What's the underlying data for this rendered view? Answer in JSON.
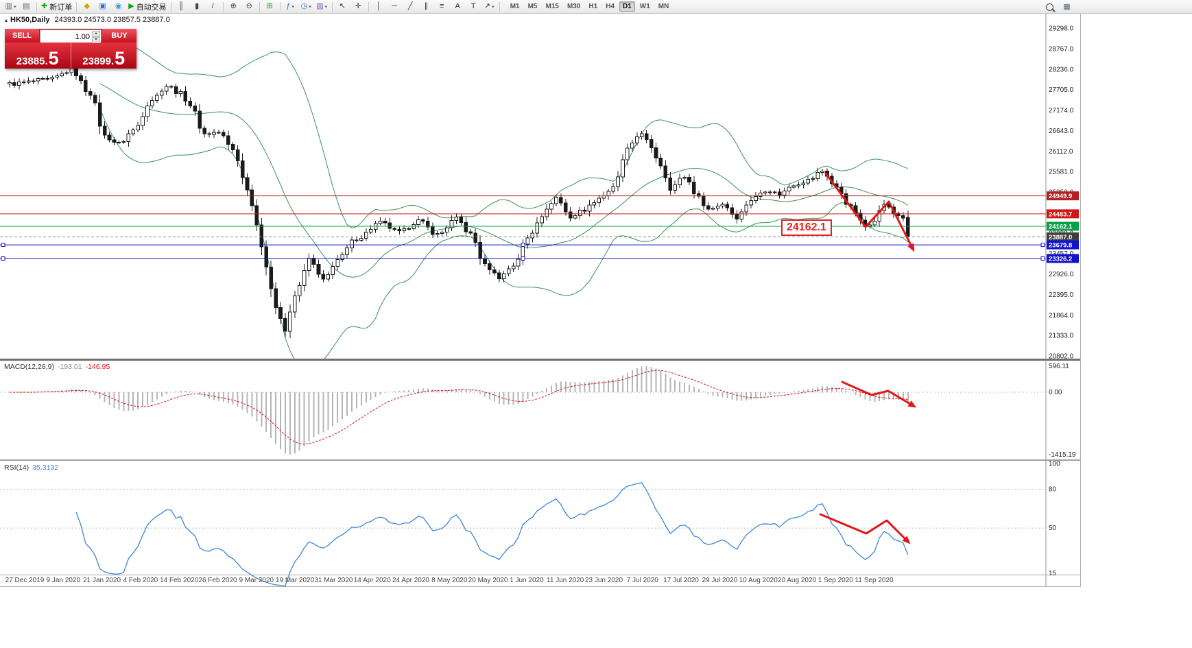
{
  "toolbar": {
    "dropdown_glyph": "▾",
    "items": [
      {
        "name": "new-chart-icon",
        "glyph": "▥",
        "color": "#5a6b7d",
        "dropdown": true
      },
      {
        "name": "profiles-icon",
        "glyph": "▤",
        "color": "#5a6b7d"
      },
      {
        "type": "sep"
      },
      {
        "name": "new-order-button",
        "glyph": "✚",
        "color": "#13a10e",
        "label": "新订单"
      },
      {
        "type": "sep"
      },
      {
        "name": "market-watch-icon",
        "glyph": "◆",
        "color": "#d8a200"
      },
      {
        "name": "terminal-icon",
        "glyph": "▣",
        "color": "#2f6fce"
      },
      {
        "name": "mql-community-icon",
        "glyph": "◉",
        "color": "#2f9bd8"
      },
      {
        "name": "autotrading-button",
        "glyph": "▶",
        "color": "#13a10e",
        "label": "自动交易"
      },
      {
        "type": "sep"
      },
      {
        "name": "bars-type-icon",
        "glyph": "║",
        "color": "#444444"
      },
      {
        "name": "candles-type-icon",
        "glyph": "▮",
        "color": "#444444"
      },
      {
        "name": "line-type-icon",
        "glyph": "/",
        "color": "#444444"
      },
      {
        "type": "sep"
      },
      {
        "name": "zoom-in-icon",
        "glyph": "⊕",
        "color": "#444444"
      },
      {
        "name": "zoom-out-icon",
        "glyph": "⊖",
        "color": "#444444"
      },
      {
        "type": "sep"
      },
      {
        "name": "tile-windows-icon",
        "glyph": "⊞",
        "color": "#13a10e"
      },
      {
        "type": "sep"
      },
      {
        "name": "indicators-icon",
        "glyph": "ƒ",
        "color": "#2f6fce",
        "dropdown": true
      },
      {
        "name": "periods-icon",
        "glyph": "◷",
        "color": "#2f6fce",
        "dropdown": true
      },
      {
        "name": "templates-icon",
        "glyph": "▨",
        "color": "#7a5ec0",
        "dropdown": true
      },
      {
        "type": "sep"
      },
      {
        "name": "cursor-icon",
        "glyph": "↖",
        "color": "#333333"
      },
      {
        "name": "crosshair-icon",
        "glyph": "✛",
        "color": "#333333"
      },
      {
        "type": "sep"
      },
      {
        "name": "vertical-line-icon",
        "glyph": "│",
        "color": "#333333"
      },
      {
        "name": "horizontal-line-icon",
        "glyph": "─",
        "color": "#333333"
      },
      {
        "name": "trendline-icon",
        "glyph": "╱",
        "color": "#333333"
      },
      {
        "name": "channel-icon",
        "glyph": "∥",
        "color": "#333333"
      },
      {
        "name": "fibonacci-icon",
        "glyph": "≡",
        "color": "#333333"
      },
      {
        "name": "text-icon",
        "glyph": "A",
        "color": "#333333"
      },
      {
        "name": "label-icon",
        "glyph": "T",
        "color": "#333333"
      },
      {
        "name": "shapes-icon",
        "glyph": "↗",
        "color": "#333333",
        "dropdown": true
      },
      {
        "type": "sep"
      }
    ],
    "timeframes": [
      "M1",
      "M5",
      "M15",
      "M30",
      "H1",
      "H4",
      "D1",
      "W1",
      "MN"
    ],
    "active_timeframe": "D1",
    "right_items": [
      {
        "name": "search-icon",
        "kind": "magnifier"
      },
      {
        "name": "chart-profile-icon",
        "glyph": "▦",
        "color": "#5a6b7d"
      }
    ]
  },
  "chart_title": {
    "collapse_glyph": "▴",
    "symbol_period": "HK50,Daily",
    "ohlc": "24393.0 24573.0 23857.5 23887.0"
  },
  "trade_panel": {
    "sell_label": "SELL",
    "buy_label": "BUY",
    "volume": "1.00",
    "spin_up": "▴",
    "spin_down": "▾",
    "sell_price": {
      "main": "23885.",
      "big": "5"
    },
    "buy_price": {
      "main": "23899.",
      "big": "5"
    }
  },
  "annotation": {
    "text": "24162.1"
  },
  "price_axis": {
    "ticks": [
      {
        "v": 29298.0,
        "t": "29298.0"
      },
      {
        "v": 28767.0,
        "t": "28767.0"
      },
      {
        "v": 28236.0,
        "t": "28236.0"
      },
      {
        "v": 27705.0,
        "t": "27705.0"
      },
      {
        "v": 27174.0,
        "t": "27174.0"
      },
      {
        "v": 26643.0,
        "t": "26643.0"
      },
      {
        "v": 26112.0,
        "t": "26112.0"
      },
      {
        "v": 25581.0,
        "t": "25581.0"
      },
      {
        "v": 25050.0,
        "t": "25050.0"
      },
      {
        "v": 24519.0,
        "t": "24519.0"
      },
      {
        "v": 23988.0,
        "t": "23988.0"
      },
      {
        "v": 23457.0,
        "t": "23457.0"
      },
      {
        "v": 22926.0,
        "t": "22926.0"
      },
      {
        "v": 22395.0,
        "t": "22395.0"
      },
      {
        "v": 21864.0,
        "t": "21864.0"
      },
      {
        "v": 21333.0,
        "t": "21333.0"
      },
      {
        "v": 20802.0,
        "t": "20802.0"
      }
    ]
  },
  "price_lines": [
    {
      "v": 24949.9,
      "t": "24949.9",
      "color": "#b22222",
      "style": "solid"
    },
    {
      "v": 24483.7,
      "t": "24483.7",
      "color": "#d01818",
      "style": "solid"
    },
    {
      "v": 24162.1,
      "t": "24162.1",
      "color": "#0aa046",
      "style": "solid"
    },
    {
      "v": 23887.0,
      "t": "23887.0",
      "color": "#8a8a8a",
      "style": "dash",
      "tag": "#3f3f3f"
    },
    {
      "v": 23679.8,
      "t": "23679.8",
      "color": "#1212cc",
      "style": "solid",
      "handles": true
    },
    {
      "v": 23326.2,
      "t": "23326.2",
      "color": "#1212cc",
      "style": "solid",
      "handles": true
    }
  ],
  "macd": {
    "name": "MACD(12,26,9)",
    "value_main": "-193.01",
    "value_signal": "-146.95",
    "ticks": [
      {
        "v": 596.11,
        "t": "596.11"
      },
      {
        "v": 0,
        "t": "0.00"
      },
      {
        "v": -1415.19,
        "t": "-1415.19"
      }
    ]
  },
  "rsi": {
    "name": "RSI(14)",
    "value": "35.3132",
    "ticks": [
      {
        "v": 100,
        "t": "100"
      },
      {
        "v": 80,
        "t": "80"
      },
      {
        "v": 50,
        "t": "50"
      },
      {
        "v": 15,
        "t": "15"
      }
    ],
    "levels": [
      80,
      50
    ]
  },
  "time_axis": {
    "labels": [
      "27 Dec 2019",
      "9 Jan 2020",
      "21 Jan 2020",
      "4 Feb 2020",
      "14 Feb 2020",
      "26 Feb 2020",
      "9 Mar 2020",
      "19 Mar 2020",
      "31 Mar 2020",
      "14 Apr 2020",
      "24 Apr 2020",
      "8 May 2020",
      "20 May 2020",
      "1 Jun 2020",
      "11 Jun 2020",
      "23 Jun 2020",
      "7 Jul 2020",
      "17 Jul 2020",
      "29 Jul 2020",
      "10 Aug 2020",
      "20 Aug 2020",
      "1 Sep 2020",
      "11 Sep 2020"
    ]
  },
  "chart_data": {
    "type": "candlestick",
    "symbol": "HK50",
    "period": "Daily",
    "bars": 190,
    "current_ohlc": [
      24393.0,
      24573.0,
      23857.5,
      23887.0
    ],
    "bid": "23885.5",
    "ask": "23899.5",
    "price_path": [
      [
        0,
        27850
      ],
      [
        8,
        27950
      ],
      [
        13,
        28200
      ],
      [
        17,
        27600
      ],
      [
        20,
        26500
      ],
      [
        23,
        26300
      ],
      [
        26,
        26650
      ],
      [
        30,
        27450
      ],
      [
        33,
        27800
      ],
      [
        36,
        27600
      ],
      [
        38,
        27300
      ],
      [
        41,
        26550
      ],
      [
        44,
        26600
      ],
      [
        47,
        26150
      ],
      [
        50,
        25150
      ],
      [
        52,
        24250
      ],
      [
        54,
        23050
      ],
      [
        56,
        22100
      ],
      [
        58,
        21450
      ],
      [
        60,
        22350
      ],
      [
        63,
        23300
      ],
      [
        66,
        22750
      ],
      [
        69,
        23300
      ],
      [
        73,
        23850
      ],
      [
        78,
        24250
      ],
      [
        82,
        24000
      ],
      [
        86,
        24300
      ],
      [
        90,
        23950
      ],
      [
        94,
        24350
      ],
      [
        97,
        23950
      ],
      [
        100,
        23150
      ],
      [
        103,
        22850
      ],
      [
        106,
        23150
      ],
      [
        109,
        23850
      ],
      [
        112,
        24450
      ],
      [
        115,
        24900
      ],
      [
        118,
        24400
      ],
      [
        121,
        24600
      ],
      [
        124,
        24900
      ],
      [
        127,
        25150
      ],
      [
        130,
        26150
      ],
      [
        133,
        26600
      ],
      [
        135,
        26150
      ],
      [
        137,
        25750
      ],
      [
        139,
        25150
      ],
      [
        142,
        25450
      ],
      [
        145,
        24900
      ],
      [
        147,
        24600
      ],
      [
        150,
        24750
      ],
      [
        153,
        24400
      ],
      [
        156,
        24850
      ],
      [
        159,
        25100
      ],
      [
        162,
        25000
      ],
      [
        165,
        25250
      ],
      [
        168,
        25350
      ],
      [
        171,
        25600
      ],
      [
        174,
        25150
      ],
      [
        177,
        24650
      ],
      [
        180,
        24150
      ],
      [
        182,
        24350
      ],
      [
        184,
        24750
      ],
      [
        186,
        24500
      ],
      [
        188,
        24393
      ],
      [
        189,
        23887
      ]
    ],
    "indicators": [
      {
        "name": "Bollinger Bands",
        "period": 20,
        "deviation": 2,
        "color": "#36915c"
      },
      {
        "name": "MACD",
        "fast": 12,
        "slow": 26,
        "signal": 9
      },
      {
        "name": "RSI",
        "period": 14
      }
    ],
    "drawings": {
      "main_arrow": [
        [
          1204,
          233
        ],
        [
          1262,
          311
        ],
        [
          1296,
          274
        ],
        [
          1331,
          343
        ]
      ],
      "macd_arrow": [
        [
          1228,
          537
        ],
        [
          1271,
          556
        ],
        [
          1295,
          550
        ],
        [
          1332,
          572
        ]
      ],
      "rsi_arrow": [
        [
          1196,
          730
        ],
        [
          1263,
          758
        ],
        [
          1293,
          739
        ],
        [
          1324,
          770
        ]
      ]
    }
  }
}
